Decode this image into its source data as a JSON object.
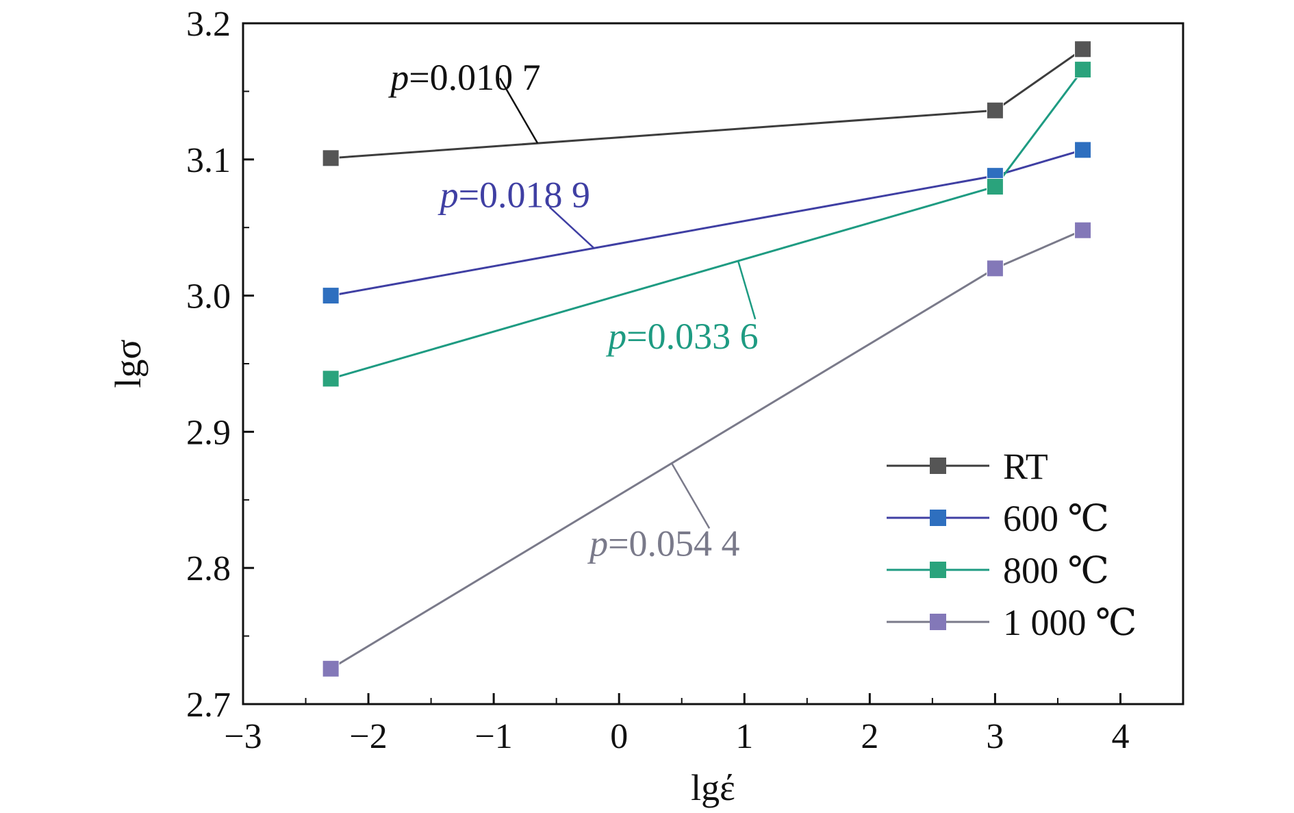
{
  "chart_data": {
    "type": "line",
    "xlabel": "lgέ",
    "ylabel": "lgσ",
    "xlim": [
      -3,
      4.5
    ],
    "ylim": [
      2.7,
      3.2
    ],
    "xticks": [
      -3,
      -2,
      -1,
      0,
      1,
      2,
      3,
      4
    ],
    "xtick_labels": [
      "−3",
      "−2",
      "−1",
      "0",
      "1",
      "2",
      "3",
      "4"
    ],
    "yticks": [
      2.7,
      2.8,
      2.9,
      3.0,
      3.1,
      3.2
    ],
    "ytick_labels": [
      "2.7",
      "2.8",
      "2.9",
      "3.0",
      "3.1",
      "3.2"
    ],
    "grid": false,
    "legend_position": "bottom-right",
    "x": [
      -2.3,
      3.0,
      3.7
    ],
    "series": [
      {
        "name": "RT",
        "values": [
          3.101,
          3.136,
          3.181
        ],
        "color": "#3d3d3d",
        "marker_color": "#555555"
      },
      {
        "name": "600 ℃",
        "values": [
          3.0,
          3.088,
          3.107
        ],
        "color": "#3f3fa3",
        "marker_color": "#2e6fbf"
      },
      {
        "name": "800 ℃",
        "values": [
          2.939,
          3.08,
          3.166
        ],
        "color": "#1e9b82",
        "marker_color": "#2aa37c"
      },
      {
        "name": "1 000 ℃",
        "values": [
          2.726,
          3.02,
          3.048
        ],
        "color": "#7a7a8a",
        "marker_color": "#8378b8"
      }
    ],
    "annotations": [
      {
        "label": "p",
        "value": "=0.010 7",
        "color": "#111111",
        "series": "RT",
        "at_x": -0.65
      },
      {
        "label": "p",
        "value": "=0.018 9",
        "color": "#3f3fa3",
        "series": "600 ℃",
        "at_x": -0.2
      },
      {
        "label": "p",
        "value": "=0.033 6",
        "color": "#1e9b82",
        "series": "800 ℃",
        "at_x": 0.95
      },
      {
        "label": "p",
        "value": "=0.054 4",
        "color": "#7a7a8a",
        "series": "1 000 ℃",
        "at_x": 0.42
      }
    ]
  }
}
